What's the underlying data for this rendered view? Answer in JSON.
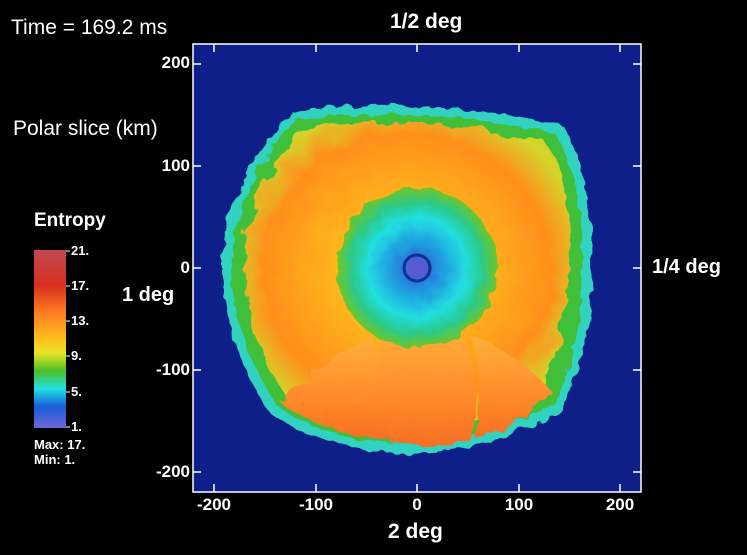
{
  "time_label": "Time = 169.2 ms",
  "slice_label": "Polar slice (km)",
  "view_labels": {
    "top": "1/2 deg",
    "left": "1 deg",
    "right": "1/4 deg",
    "bottom": "2 deg"
  },
  "y_ticks": [
    "200",
    "100",
    "0",
    "-100",
    "-200"
  ],
  "x_ticks": [
    "-200",
    "-100",
    "0",
    "100",
    "200"
  ],
  "colorbar": {
    "title": "Entropy",
    "labels": [
      "21.",
      "17.",
      "13.",
      "9.",
      "5.",
      "1."
    ],
    "max_label": "Max: 17.",
    "min_label": "Min: 1."
  },
  "colors": {
    "background_field": "#0f1f8a",
    "shock_edge": "#36d7c6",
    "core": "#5a5ad2"
  }
}
